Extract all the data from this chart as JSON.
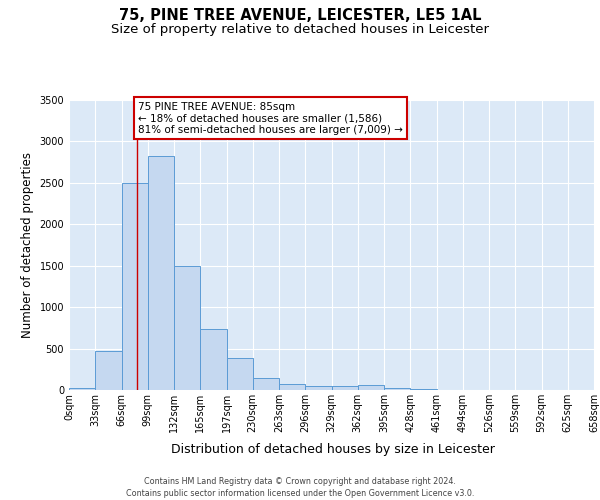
{
  "title_line1": "75, PINE TREE AVENUE, LEICESTER, LE5 1AL",
  "title_line2": "Size of property relative to detached houses in Leicester",
  "xlabel": "Distribution of detached houses by size in Leicester",
  "ylabel": "Number of detached properties",
  "bar_color": "#c5d8f0",
  "bar_edge_color": "#5b9bd5",
  "background_color": "#dce9f7",
  "grid_color": "#ffffff",
  "bin_labels": [
    "0sqm",
    "33sqm",
    "66sqm",
    "99sqm",
    "132sqm",
    "165sqm",
    "197sqm",
    "230sqm",
    "263sqm",
    "296sqm",
    "329sqm",
    "362sqm",
    "395sqm",
    "428sqm",
    "461sqm",
    "494sqm",
    "526sqm",
    "559sqm",
    "592sqm",
    "625sqm",
    "658sqm"
  ],
  "bar_values": [
    20,
    470,
    2500,
    2830,
    1500,
    740,
    390,
    145,
    75,
    45,
    50,
    55,
    20,
    10,
    5,
    2,
    1,
    1,
    0,
    0
  ],
  "ylim": [
    0,
    3500
  ],
  "yticks": [
    0,
    500,
    1000,
    1500,
    2000,
    2500,
    3000,
    3500
  ],
  "property_line_x": 85,
  "annotation_title": "75 PINE TREE AVENUE: 85sqm",
  "annotation_line1": "← 18% of detached houses are smaller (1,586)",
  "annotation_line2": "81% of semi-detached houses are larger (7,009) →",
  "annotation_box_color": "#ffffff",
  "annotation_border_color": "#cc0000",
  "footer_line1": "Contains HM Land Registry data © Crown copyright and database right 2024.",
  "footer_line2": "Contains public sector information licensed under the Open Government Licence v3.0.",
  "title_fontsize": 10.5,
  "subtitle_fontsize": 9.5,
  "tick_fontsize": 7,
  "ylabel_fontsize": 8.5,
  "xlabel_fontsize": 9,
  "annotation_fontsize": 7.5,
  "footer_fontsize": 5.8,
  "bin_width": 33
}
